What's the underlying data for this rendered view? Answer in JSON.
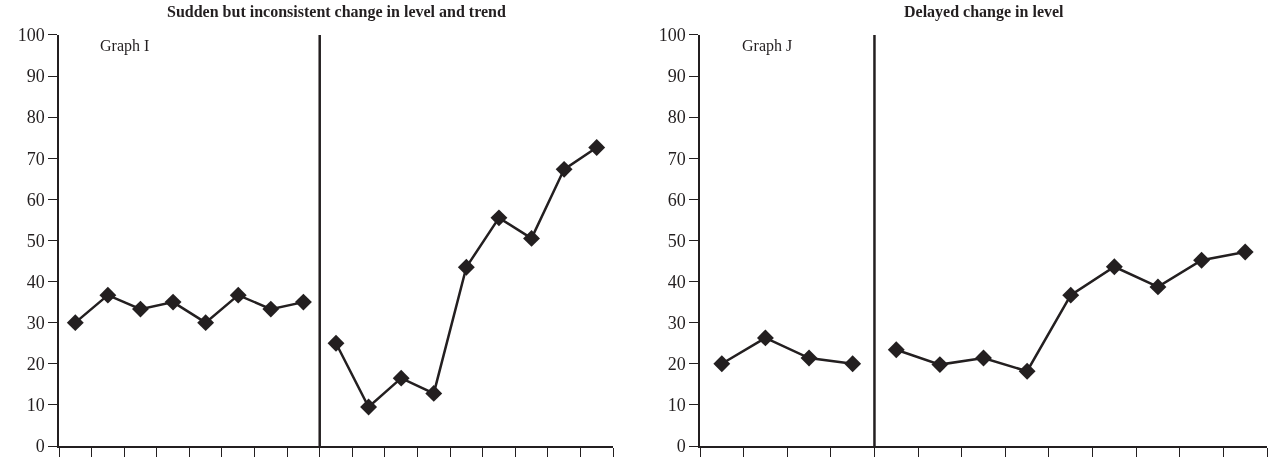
{
  "chart_data": [
    {
      "type": "line",
      "title": "Sudden but inconsistent change in level and trend",
      "annotations": [
        "Graph I"
      ],
      "categories": [
        null,
        null,
        null,
        null,
        null,
        null,
        null,
        null,
        null,
        null,
        null,
        null,
        null,
        null,
        null,
        null,
        null
      ],
      "ylim": [
        0,
        100
      ],
      "yticks": [
        0,
        10,
        20,
        30,
        40,
        50,
        60,
        70,
        80,
        90,
        100
      ],
      "tick_labels": "y",
      "marker": "diamond",
      "line_style": "solid",
      "series": [
        {
          "color": "#231f20",
          "values": [
            30,
            36.7,
            33.3,
            35,
            30,
            36.7,
            33.3,
            35,
            null,
            null,
            null,
            null,
            null,
            null,
            null,
            null,
            null
          ]
        },
        {
          "color": "#231f20",
          "values": [
            null,
            null,
            null,
            null,
            null,
            null,
            null,
            null,
            25,
            9.5,
            16.5,
            12.8,
            43.5,
            55.5,
            50.5,
            67.3,
            72.6
          ]
        }
      ]
    },
    {
      "type": "line",
      "title": "Delayed change in level",
      "annotations": [
        "Graph J"
      ],
      "categories": [
        null,
        null,
        null,
        null,
        null,
        null,
        null,
        null,
        null,
        null,
        null,
        null,
        null
      ],
      "ylim": [
        0,
        100
      ],
      "yticks": [
        0,
        10,
        20,
        30,
        40,
        50,
        60,
        70,
        80,
        90,
        100
      ],
      "tick_labels": "y",
      "marker": "diamond",
      "line_style": "solid",
      "series": [
        {
          "color": "#231f20",
          "values": [
            20,
            26.3,
            21.4,
            20,
            null,
            null,
            null,
            null,
            null,
            null,
            null,
            null,
            null
          ]
        },
        {
          "color": "#231f20",
          "values": [
            null,
            null,
            null,
            null,
            23.4,
            19.8,
            21.4,
            18.2,
            36.7,
            43.6,
            38.7,
            45.2,
            47.2
          ]
        }
      ]
    }
  ]
}
